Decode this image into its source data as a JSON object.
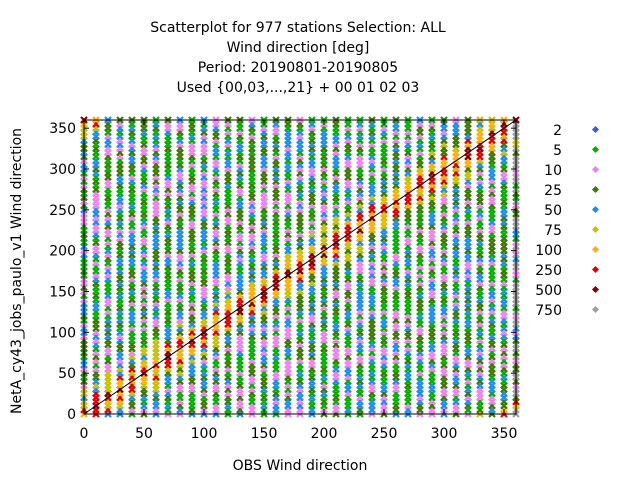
{
  "titles": [
    "Scatterplot for  977 stations Selection: ALL",
    "Wind direction [deg]",
    "Period: 20190801-20190805",
    "Used {00,03,...,21} + 00 01 02 03"
  ],
  "chart_data": {
    "type": "scatter",
    "xlabel": "OBS Wind direction",
    "ylabel": "NetA_cy43_jobs_paulo_v1 Wind direction",
    "xlim": [
      0,
      360
    ],
    "ylim": [
      0,
      360
    ],
    "xticks": [
      0,
      50,
      100,
      150,
      200,
      250,
      300,
      350
    ],
    "yticks": [
      0,
      50,
      100,
      150,
      200,
      250,
      300,
      350
    ],
    "diagonal": true,
    "grid": false,
    "legend_position": "right",
    "observation_bins_deg": [
      0,
      10,
      20,
      30,
      40,
      50,
      60,
      70,
      80,
      90,
      100,
      110,
      120,
      130,
      140,
      150,
      160,
      170,
      180,
      190,
      200,
      210,
      220,
      230,
      240,
      250,
      260,
      270,
      280,
      290,
      300,
      310,
      320,
      330,
      340,
      350,
      360
    ],
    "model_bin_step_deg": 5,
    "density_legend": [
      {
        "label": "2",
        "color": "#3060e0"
      },
      {
        "label": "5",
        "color": "#00b000"
      },
      {
        "label": "10",
        "color": "#f080f0"
      },
      {
        "label": "25",
        "color": "#3a7a00"
      },
      {
        "label": "50",
        "color": "#1a8ef0"
      },
      {
        "label": "75",
        "color": "#c8c000"
      },
      {
        "label": "100",
        "color": "#ffb000"
      },
      {
        "label": "250",
        "color": "#e00000"
      },
      {
        "label": "500",
        "color": "#800000"
      },
      {
        "label": "750",
        "color": "#a0a0a0"
      }
    ]
  }
}
